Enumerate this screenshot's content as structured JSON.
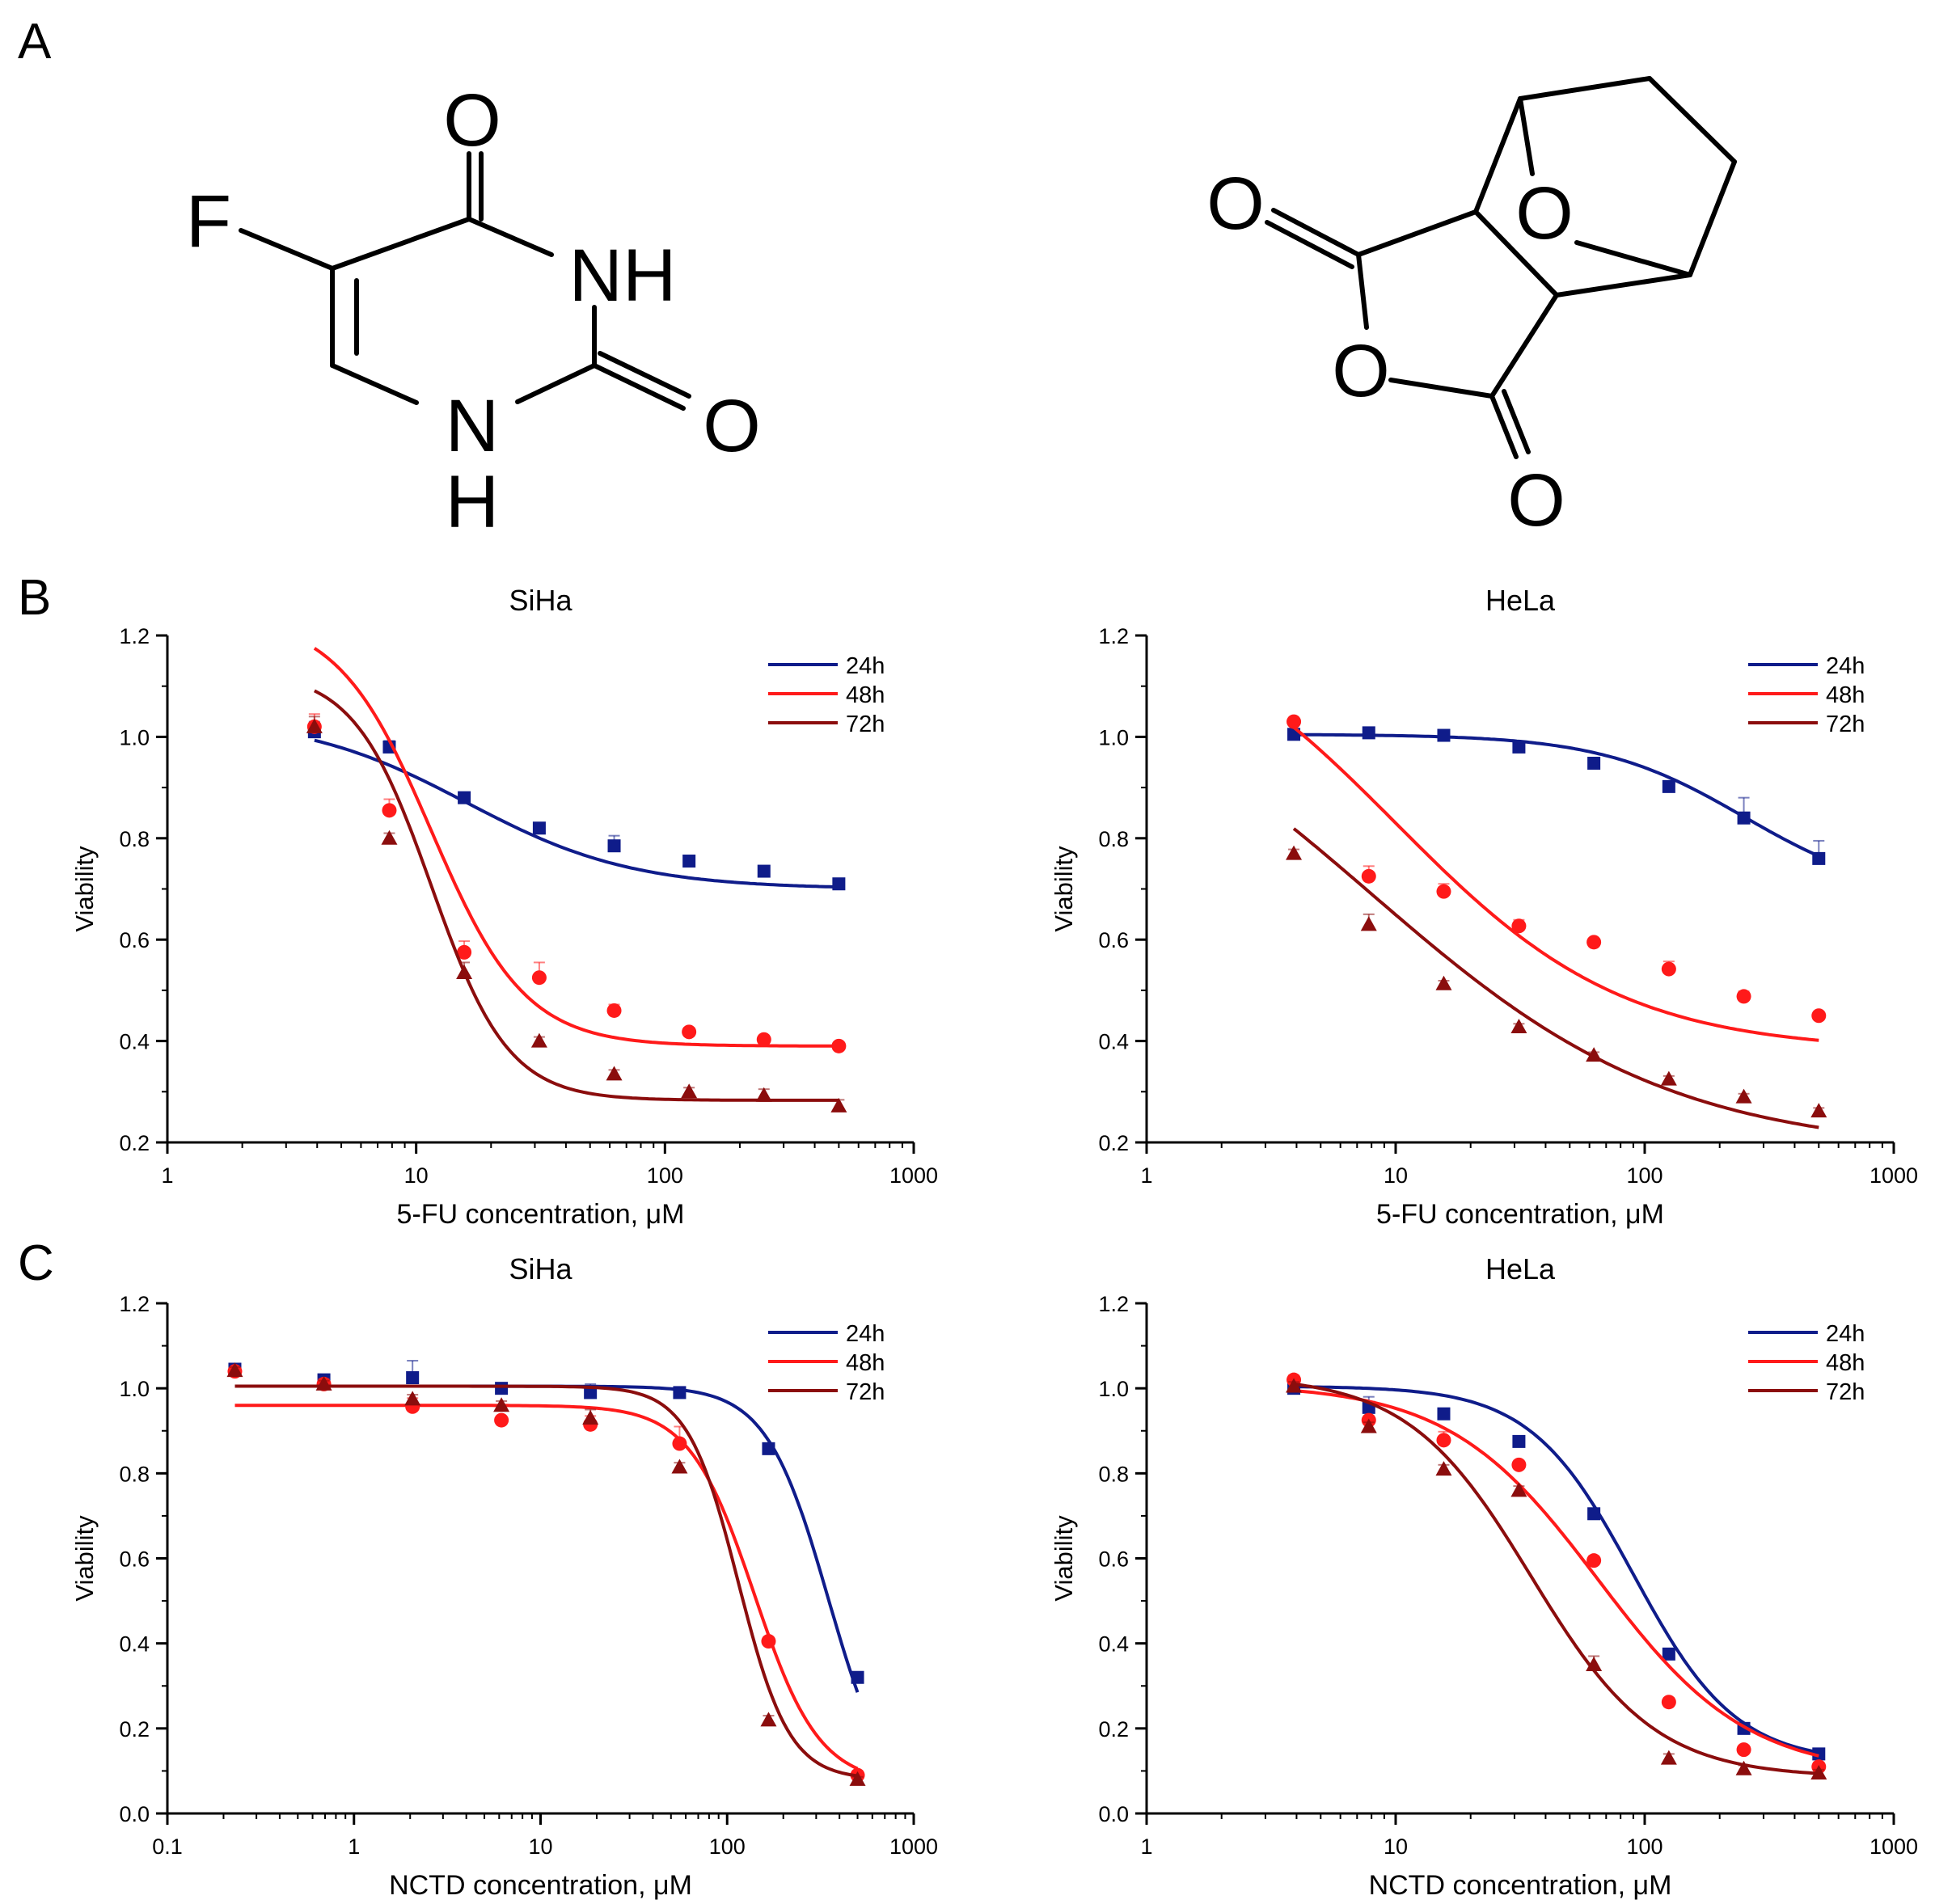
{
  "panel_labels": [
    "A",
    "B",
    "C"
  ],
  "structures": {
    "fu": {
      "atoms": {
        "o_top": "O",
        "f": "F",
        "nh_top": "NH",
        "o_right": "O",
        "n_bottom": "N",
        "h_bottom": "H"
      }
    },
    "nctd": {
      "atoms": {
        "o_left": "O",
        "o_bridge": "O",
        "o_ring": "O",
        "o_bottom": "O"
      }
    }
  },
  "colors": {
    "s24": "#0f1c8a",
    "s48": "#ff1a1a",
    "s72": "#8b0d0d"
  },
  "chart_data": [
    {
      "type": "line",
      "title": "SiHa",
      "xlabel": "5-FU concentration, μM",
      "ylabel": "Viability",
      "xscale": "log",
      "xlim": [
        1,
        1000
      ],
      "ylim": [
        0.2,
        1.2
      ],
      "xticks": [
        1,
        10,
        100,
        1000
      ],
      "xtick_labels": [
        "1",
        "10",
        "100",
        "1000"
      ],
      "yticks": [
        0.2,
        0.4,
        0.6,
        0.8,
        1.0,
        1.2
      ],
      "ytick_labels": [
        "0.2",
        "0.4",
        "0.6",
        "0.8",
        "1.0",
        "1.2"
      ],
      "legend": "top-right",
      "series": [
        {
          "name": "24h",
          "color_key": "s24",
          "marker": "square",
          "x": [
            3.9,
            7.8,
            15.6,
            31.25,
            62.5,
            125,
            250,
            500
          ],
          "y": [
            1.01,
            0.98,
            0.88,
            0.82,
            0.785,
            0.755,
            0.735,
            0.71
          ],
          "err": [
            0.02,
            0.012,
            0.01,
            0.008,
            0.02,
            0.008,
            0.01,
            0.006
          ],
          "fit": {
            "bottom": 0.7,
            "top": 1.04,
            "ec50": 16,
            "hill": 1.3
          }
        },
        {
          "name": "48h",
          "color_key": "s48",
          "marker": "circle",
          "x": [
            3.9,
            7.8,
            15.6,
            31.25,
            62.5,
            125,
            250,
            500
          ],
          "y": [
            1.02,
            0.855,
            0.575,
            0.525,
            0.46,
            0.418,
            0.403,
            0.39
          ],
          "err": [
            0.025,
            0.022,
            0.022,
            0.03,
            0.012,
            0.008,
            0.008,
            0.008
          ],
          "fit": {
            "bottom": 0.39,
            "top": 1.24,
            "ec50": 11.5,
            "hill": 2.3
          }
        },
        {
          "name": "72h",
          "color_key": "s72",
          "marker": "triangle",
          "x": [
            3.9,
            7.8,
            15.6,
            31.25,
            62.5,
            125,
            250,
            500
          ],
          "y": [
            1.02,
            0.8,
            0.535,
            0.4,
            0.335,
            0.3,
            0.293,
            0.272
          ],
          "err": [
            0.02,
            0.01,
            0.02,
            0.008,
            0.008,
            0.008,
            0.012,
            0.012
          ],
          "fit": {
            "bottom": 0.283,
            "top": 1.13,
            "ec50": 11.5,
            "hill": 2.8
          }
        }
      ]
    },
    {
      "type": "line",
      "title": "HeLa",
      "xlabel": "5-FU concentration, μM",
      "ylabel": "Viability",
      "xscale": "log",
      "xlim": [
        1,
        1000
      ],
      "ylim": [
        0.2,
        1.2
      ],
      "xticks": [
        1,
        10,
        100,
        1000
      ],
      "xtick_labels": [
        "1",
        "10",
        "100",
        "1000"
      ],
      "yticks": [
        0.2,
        0.4,
        0.6,
        0.8,
        1.0,
        1.2
      ],
      "ytick_labels": [
        "0.2",
        "0.4",
        "0.6",
        "0.8",
        "1.0",
        "1.2"
      ],
      "legend": "top-right",
      "series": [
        {
          "name": "24h",
          "color_key": "s24",
          "marker": "square",
          "x": [
            3.9,
            7.8,
            15.6,
            31.25,
            62.5,
            125,
            250,
            500
          ],
          "y": [
            1.005,
            1.008,
            1.003,
            0.98,
            0.948,
            0.902,
            0.84,
            0.76
          ],
          "err": [
            0.006,
            0.005,
            0.005,
            0.005,
            0.008,
            0.006,
            0.04,
            0.035
          ],
          "fit": {
            "bottom": 0.68,
            "top": 1.005,
            "ec50": 250,
            "hill": 1.5
          }
        },
        {
          "name": "48h",
          "color_key": "s48",
          "marker": "circle",
          "x": [
            3.9,
            7.8,
            15.6,
            31.25,
            62.5,
            125,
            250,
            500
          ],
          "y": [
            1.03,
            0.725,
            0.695,
            0.627,
            0.595,
            0.542,
            0.488,
            0.45
          ],
          "err": [
            0.006,
            0.02,
            0.015,
            0.012,
            0.006,
            0.015,
            0.01,
            0.008
          ],
          "fit": {
            "bottom": 0.38,
            "top": 1.28,
            "ec50": 10,
            "hill": 0.95
          }
        },
        {
          "name": "72h",
          "color_key": "s72",
          "marker": "triangle",
          "x": [
            3.9,
            7.8,
            15.6,
            31.25,
            62.5,
            125,
            250,
            500
          ],
          "y": [
            0.77,
            0.63,
            0.513,
            0.428,
            0.372,
            0.325,
            0.29,
            0.262
          ],
          "err": [
            0.008,
            0.02,
            0.006,
            0.006,
            0.006,
            0.006,
            0.006,
            0.006
          ],
          "fit": {
            "bottom": 0.18,
            "top": 1.2,
            "ec50": 8,
            "hill": 0.72
          }
        }
      ]
    },
    {
      "type": "line",
      "title": "SiHa",
      "xlabel": "NCTD concentration, μM",
      "ylabel": "Viability",
      "xscale": "log",
      "xlim": [
        0.1,
        1000
      ],
      "ylim": [
        0.0,
        1.2
      ],
      "xticks": [
        0.1,
        1,
        10,
        100,
        1000
      ],
      "xtick_labels": [
        "0.1",
        "1",
        "10",
        "100",
        "1000"
      ],
      "yticks": [
        0.0,
        0.2,
        0.4,
        0.6,
        0.8,
        1.0,
        1.2
      ],
      "ytick_labels": [
        "0.0",
        "0.2",
        "0.4",
        "0.6",
        "0.8",
        "1.0",
        "1.2"
      ],
      "legend": "top-right",
      "series": [
        {
          "name": "24h",
          "color_key": "s24",
          "marker": "square",
          "x": [
            0.23,
            0.69,
            2.06,
            6.17,
            18.5,
            55.6,
            166.7,
            500
          ],
          "y": [
            1.045,
            1.02,
            1.025,
            1.0,
            0.99,
            0.99,
            0.858,
            0.32
          ],
          "err": [
            0.01,
            0.01,
            0.04,
            0.01,
            0.02,
            0.008,
            0.008,
            0.008
          ],
          "fit": {
            "bottom": 0.0,
            "top": 1.005,
            "ec50": 350,
            "hill": 2.6
          }
        },
        {
          "name": "48h",
          "color_key": "s48",
          "marker": "circle",
          "x": [
            0.23,
            0.69,
            2.06,
            6.17,
            18.5,
            55.6,
            166.7,
            500
          ],
          "y": [
            1.04,
            1.01,
            0.957,
            0.925,
            0.915,
            0.87,
            0.405,
            0.09
          ],
          "err": [
            0.008,
            0.012,
            0.02,
            0.008,
            0.02,
            0.04,
            0.008,
            0.008
          ],
          "fit": {
            "bottom": 0.07,
            "top": 0.96,
            "ec50": 140,
            "hill": 2.5
          }
        },
        {
          "name": "72h",
          "color_key": "s72",
          "marker": "triangle",
          "x": [
            0.23,
            0.69,
            2.06,
            6.17,
            18.5,
            55.6,
            166.7,
            500
          ],
          "y": [
            1.042,
            1.01,
            0.975,
            0.96,
            0.93,
            0.815,
            0.22,
            0.08
          ],
          "err": [
            0.008,
            0.008,
            0.01,
            0.01,
            0.02,
            0.01,
            0.01,
            0.006
          ],
          "fit": {
            "bottom": 0.08,
            "top": 1.005,
            "ec50": 115,
            "hill": 3.2
          }
        }
      ]
    },
    {
      "type": "line",
      "title": "HeLa",
      "xlabel": "NCTD concentration, μM",
      "ylabel": "Viability",
      "xscale": "log",
      "xlim": [
        1,
        1000
      ],
      "ylim": [
        0.0,
        1.2
      ],
      "xticks": [
        1,
        10,
        100,
        1000
      ],
      "xtick_labels": [
        "1",
        "10",
        "100",
        "1000"
      ],
      "yticks": [
        0.0,
        0.2,
        0.4,
        0.6,
        0.8,
        1.0,
        1.2
      ],
      "ytick_labels": [
        "0.0",
        "0.2",
        "0.4",
        "0.6",
        "0.8",
        "1.0",
        "1.2"
      ],
      "legend": "top-right",
      "series": [
        {
          "name": "24h",
          "color_key": "s24",
          "marker": "square",
          "x": [
            3.9,
            7.8,
            15.6,
            31.25,
            62.5,
            125,
            250,
            500
          ],
          "y": [
            1.0,
            0.955,
            0.94,
            0.875,
            0.705,
            0.375,
            0.2,
            0.14
          ],
          "err": [
            0.01,
            0.025,
            0.01,
            0.01,
            0.01,
            0.01,
            0.01,
            0.01
          ],
          "fit": {
            "bottom": 0.12,
            "top": 1.005,
            "ec50": 90,
            "hill": 2.1
          }
        },
        {
          "name": "48h",
          "color_key": "s48",
          "marker": "circle",
          "x": [
            3.9,
            7.8,
            15.6,
            31.25,
            62.5,
            125,
            250,
            500
          ],
          "y": [
            1.02,
            0.925,
            0.878,
            0.82,
            0.595,
            0.262,
            0.15,
            0.11
          ],
          "err": [
            0.01,
            0.01,
            0.02,
            0.01,
            0.01,
            0.01,
            0.01,
            0.01
          ],
          "fit": {
            "bottom": 0.09,
            "top": 1.01,
            "ec50": 65,
            "hill": 1.45
          }
        },
        {
          "name": "72h",
          "color_key": "s72",
          "marker": "triangle",
          "x": [
            3.9,
            7.8,
            15.6,
            31.25,
            62.5,
            125,
            250,
            500
          ],
          "y": [
            1.005,
            0.91,
            0.81,
            0.76,
            0.35,
            0.13,
            0.105,
            0.095
          ],
          "err": [
            0.01,
            0.01,
            0.01,
            0.01,
            0.02,
            0.01,
            0.008,
            0.008
          ],
          "fit": {
            "bottom": 0.085,
            "top": 1.03,
            "ec50": 35,
            "hill": 1.75
          }
        }
      ]
    }
  ]
}
